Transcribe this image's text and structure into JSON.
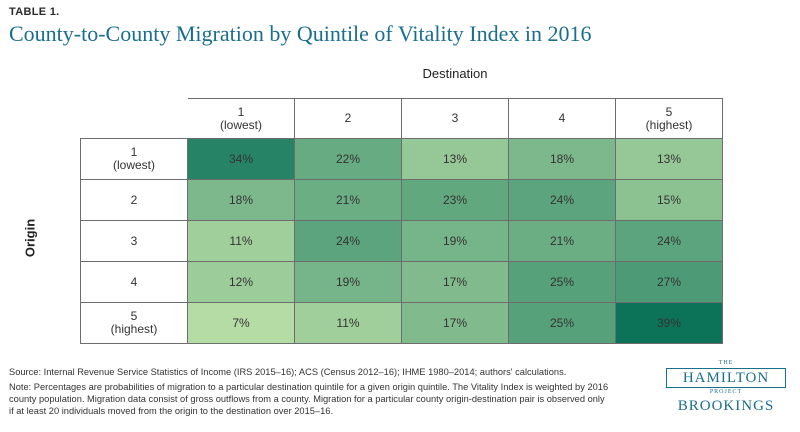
{
  "header": {
    "table_label": "TABLE 1.",
    "title": "County-to-County Migration by Quintile of Vitality Index in 2016"
  },
  "chart_data": {
    "type": "heatmap",
    "title": "County-to-County Migration by Quintile of Vitality Index in 2016",
    "column_axis_label": "Destination",
    "row_axis_label": "Origin",
    "columns": [
      "1\n(lowest)",
      "2",
      "3",
      "4",
      "5\n(highest)"
    ],
    "rows": [
      "1\n(lowest)",
      "2",
      "3",
      "4",
      "5\n(highest)"
    ],
    "values": [
      [
        34,
        22,
        13,
        18,
        13
      ],
      [
        18,
        21,
        23,
        24,
        15
      ],
      [
        11,
        24,
        19,
        21,
        24
      ],
      [
        12,
        19,
        17,
        25,
        27
      ],
      [
        7,
        11,
        17,
        25,
        39
      ]
    ],
    "value_suffix": "%",
    "color_scale": {
      "low": "#b6dca5",
      "high": "#0c7359"
    }
  },
  "notes": {
    "source": "Source: Internal Revenue Service Statistics of Income (IRS 2015–16); ACS (Census 2012–16); IHME 1980–2014; authors' calculations.",
    "note": "Note: Percentages are probabilities of migration to a particular destination quintile for a given origin quintile. The Vitality Index is weighted by 2016 county population. Migration data consist of gross outflows from a county. Migration for a particular county origin-destination pair is observed only if at least 20 individuals moved from the origin to the destination over 2015–16."
  },
  "logo": {
    "the": "THE",
    "hamilton": "HAMILTON",
    "project": "PROJECT",
    "brookings": "BROOKINGS"
  }
}
